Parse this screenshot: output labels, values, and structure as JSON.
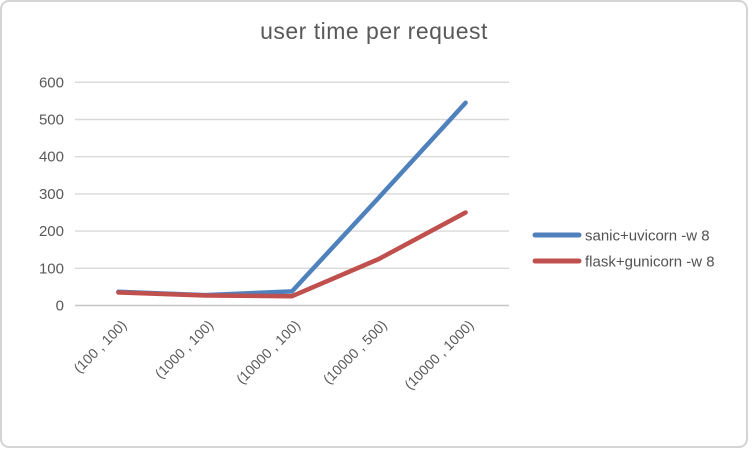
{
  "chart_data": {
    "type": "line",
    "title": "user time per request",
    "categories": [
      "(100 , 100)",
      "(1000 , 100)",
      "(10000 , 100)",
      "(10000 , 500)",
      "(10000 , 1000)"
    ],
    "series": [
      {
        "name": "sanic+uvicorn -w 8",
        "color": "#4f81bd",
        "values": [
          37,
          28,
          38,
          290,
          545
        ]
      },
      {
        "name": "flask+gunicorn -w 8",
        "color": "#c0504d",
        "values": [
          35,
          27,
          25,
          125,
          250
        ]
      }
    ],
    "ylim": [
      0,
      600
    ],
    "yticks": [
      0,
      100,
      200,
      300,
      400,
      500,
      600
    ],
    "grid": true,
    "legend_position": "right",
    "colors": {
      "gridline": "#d9d9d9",
      "axis_line": "#c6c6c6",
      "text": "#595959",
      "frame_border": "#d4d4d4"
    }
  }
}
